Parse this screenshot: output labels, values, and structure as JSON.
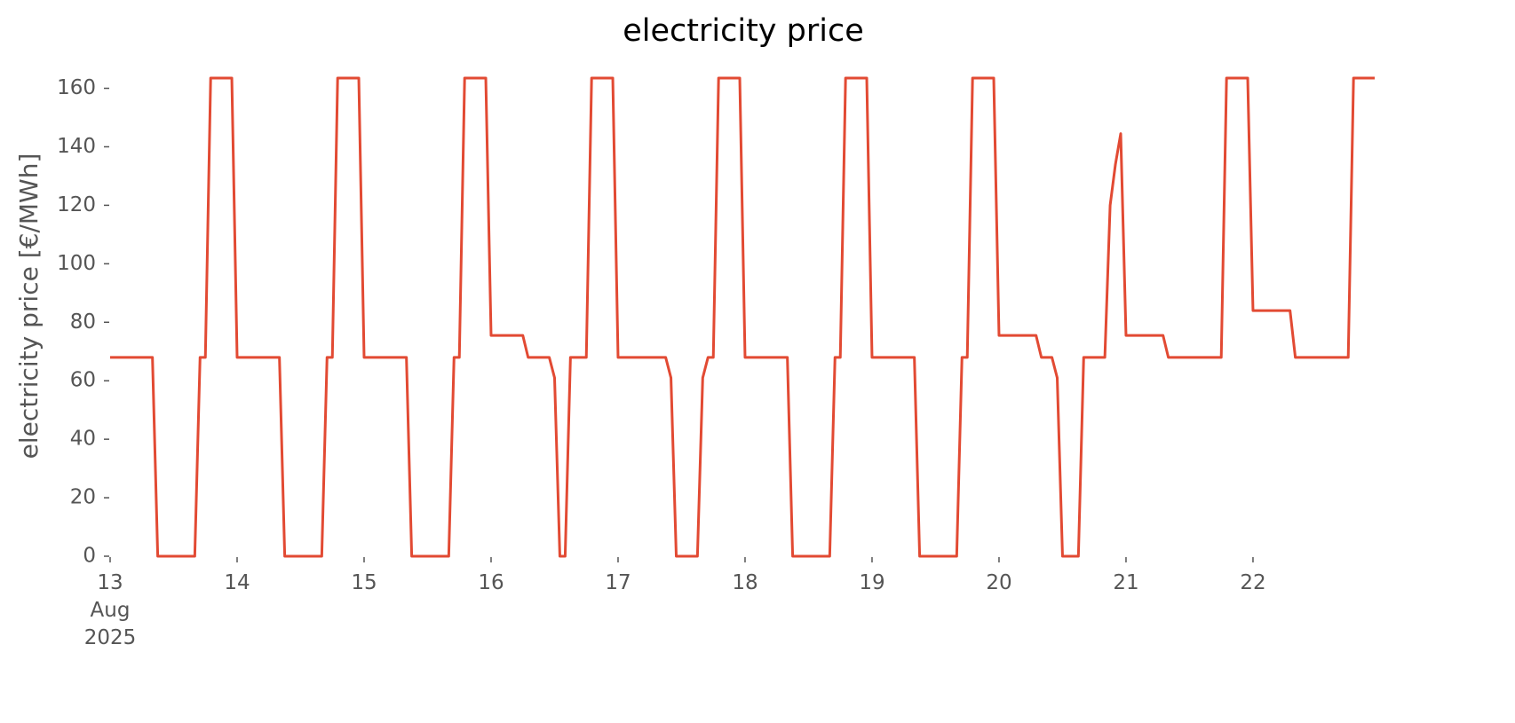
{
  "chart_data": {
    "type": "line",
    "title": "electricity price",
    "y_label": "electricity price [€/MWh]",
    "color": "#E24A33",
    "x": [
      "2025-08-13 00:00",
      "2025-08-13 08:00",
      "2025-08-13 09:00",
      "2025-08-13 16:00",
      "2025-08-13 17:00",
      "2025-08-13 18:00",
      "2025-08-13 19:00",
      "2025-08-13 23:00",
      "2025-08-14 00:00",
      "2025-08-14 08:00",
      "2025-08-14 09:00",
      "2025-08-14 16:00",
      "2025-08-14 17:00",
      "2025-08-14 18:00",
      "2025-08-14 19:00",
      "2025-08-14 23:00",
      "2025-08-15 00:00",
      "2025-08-15 08:00",
      "2025-08-15 09:00",
      "2025-08-15 16:00",
      "2025-08-15 17:00",
      "2025-08-15 18:00",
      "2025-08-15 19:00",
      "2025-08-15 23:00",
      "2025-08-16 00:00",
      "2025-08-16 06:00",
      "2025-08-16 07:00",
      "2025-08-16 11:00",
      "2025-08-16 12:00",
      "2025-08-16 13:00",
      "2025-08-16 14:00",
      "2025-08-16 15:00",
      "2025-08-16 18:00",
      "2025-08-16 19:00",
      "2025-08-16 23:00",
      "2025-08-17 00:00",
      "2025-08-17 09:00",
      "2025-08-17 10:00",
      "2025-08-17 11:00",
      "2025-08-17 15:00",
      "2025-08-17 16:00",
      "2025-08-17 17:00",
      "2025-08-17 18:00",
      "2025-08-17 19:00",
      "2025-08-17 23:00",
      "2025-08-18 00:00",
      "2025-08-18 08:00",
      "2025-08-18 09:00",
      "2025-08-18 16:00",
      "2025-08-18 17:00",
      "2025-08-18 18:00",
      "2025-08-18 19:00",
      "2025-08-18 23:00",
      "2025-08-19 00:00",
      "2025-08-19 08:00",
      "2025-08-19 09:00",
      "2025-08-19 16:00",
      "2025-08-19 17:00",
      "2025-08-19 18:00",
      "2025-08-19 19:00",
      "2025-08-19 23:00",
      "2025-08-20 00:00",
      "2025-08-20 07:00",
      "2025-08-20 08:00",
      "2025-08-20 10:00",
      "2025-08-20 11:00",
      "2025-08-20 12:00",
      "2025-08-20 15:00",
      "2025-08-20 16:00",
      "2025-08-20 20:00",
      "2025-08-20 21:00",
      "2025-08-20 22:00",
      "2025-08-20 23:00",
      "2025-08-21 00:00",
      "2025-08-21 07:00",
      "2025-08-21 08:00",
      "2025-08-21 18:00",
      "2025-08-21 19:00",
      "2025-08-21 23:00",
      "2025-08-22 00:00",
      "2025-08-22 07:00",
      "2025-08-22 08:00",
      "2025-08-22 18:00",
      "2025-08-22 19:00",
      "2025-08-22 23:00"
    ],
    "values": [
      68,
      68,
      0,
      0,
      68,
      68,
      163.5,
      163.5,
      68,
      68,
      0,
      0,
      68,
      68,
      163.5,
      163.5,
      68,
      68,
      0,
      0,
      68,
      68,
      163.5,
      163.5,
      75.5,
      75.5,
      68,
      68,
      61,
      0,
      0,
      68,
      68,
      163.5,
      163.5,
      68,
      68,
      61,
      0,
      0,
      61,
      68,
      68,
      163.5,
      163.5,
      68,
      68,
      0,
      0,
      68,
      68,
      163.5,
      163.5,
      68,
      68,
      0,
      0,
      68,
      68,
      163.5,
      163.5,
      75.5,
      75.5,
      68,
      68,
      61,
      0,
      0,
      68,
      68,
      120,
      134,
      144.5,
      75.5,
      75.5,
      68,
      68,
      163.5,
      163.5,
      84,
      84,
      68,
      68,
      163.5,
      163.5
    ],
    "xlim": [
      "2025-08-13 00:00",
      "2025-08-22 23:00"
    ],
    "xticks": [
      {
        "value": "2025-08-13 00:00",
        "label": "13\nAug\n2025"
      },
      {
        "value": "2025-08-14 00:00",
        "label": "14"
      },
      {
        "value": "2025-08-15 00:00",
        "label": "15"
      },
      {
        "value": "2025-08-16 00:00",
        "label": "16"
      },
      {
        "value": "2025-08-17 00:00",
        "label": "17"
      },
      {
        "value": "2025-08-18 00:00",
        "label": "18"
      },
      {
        "value": "2025-08-19 00:00",
        "label": "19"
      },
      {
        "value": "2025-08-20 00:00",
        "label": "20"
      },
      {
        "value": "2025-08-21 00:00",
        "label": "21"
      },
      {
        "value": "2025-08-22 00:00",
        "label": "22"
      }
    ],
    "ylim": [
      0,
      163.5
    ],
    "yticks": [
      0,
      20,
      40,
      60,
      80,
      100,
      120,
      140,
      160
    ]
  }
}
